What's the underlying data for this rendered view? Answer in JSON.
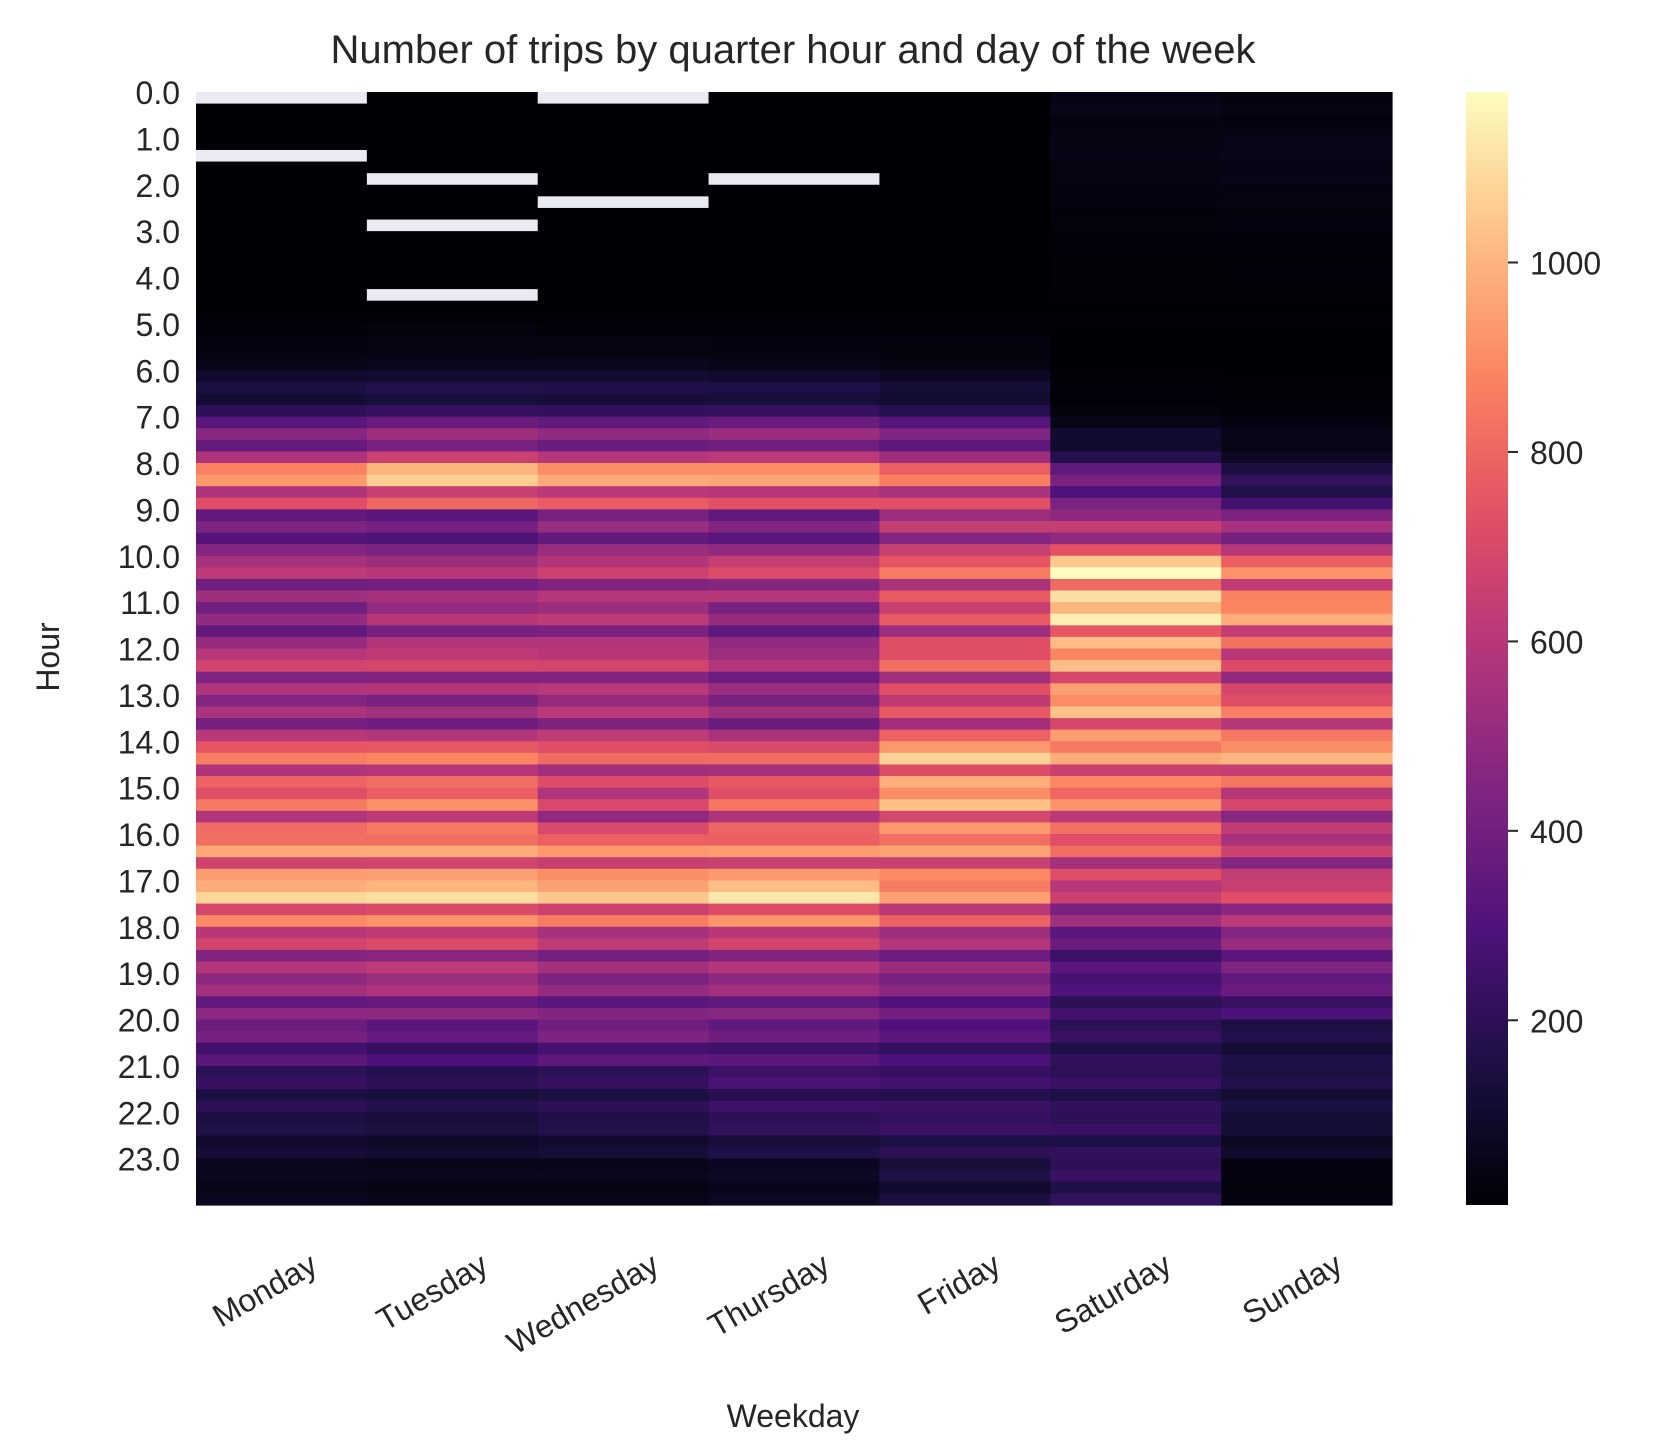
{
  "chart_data": {
    "type": "heatmap",
    "title": "Number of trips by quarter hour and day of the week",
    "xlabel": "Weekday",
    "ylabel": "Hour",
    "x_categories": [
      "Monday",
      "Tuesday",
      "Wednesday",
      "Thursday",
      "Friday",
      "Saturday",
      "Sunday"
    ],
    "y_rows_per_hour": 4,
    "y_tick_labels": [
      "0.0",
      "1.0",
      "2.0",
      "3.0",
      "4.0",
      "5.0",
      "6.0",
      "7.0",
      "8.0",
      "9.0",
      "10.0",
      "11.0",
      "12.0",
      "13.0",
      "14.0",
      "15.0",
      "16.0",
      "17.0",
      "18.0",
      "19.0",
      "20.0",
      "21.0",
      "22.0",
      "23.0"
    ],
    "colormap": "magma",
    "missing_color": "#eaeaf2",
    "vmin": 5,
    "vmax": 1180,
    "colorbar_ticks": [
      200,
      400,
      600,
      800,
      1000
    ],
    "missing": [
      {
        "weekday": "Monday",
        "hour": 0.0
      },
      {
        "weekday": "Monday",
        "hour": 1.25
      },
      {
        "weekday": "Tuesday",
        "hour": 1.75
      },
      {
        "weekday": "Tuesday",
        "hour": 2.75
      },
      {
        "weekday": "Tuesday",
        "hour": 4.25
      },
      {
        "weekday": "Wednesday",
        "hour": 0.0
      },
      {
        "weekday": "Wednesday",
        "hour": 2.25
      },
      {
        "weekday": "Thursday",
        "hour": 1.75
      }
    ],
    "hourly_values": {
      "Monday": [
        8,
        6,
        5,
        5,
        6,
        20,
        100,
        330,
        870,
        350,
        550,
        400,
        600,
        450,
        750,
        720,
        820,
        980,
        600,
        480,
        380,
        200,
        150,
        60
      ],
      "Tuesday": [
        8,
        6,
        5,
        5,
        6,
        25,
        110,
        380,
        1000,
        330,
        520,
        500,
        620,
        420,
        760,
        780,
        820,
        1000,
        620,
        520,
        330,
        180,
        130,
        50
      ],
      "Wednesday": [
        8,
        6,
        5,
        5,
        6,
        22,
        110,
        350,
        900,
        420,
        580,
        520,
        600,
        500,
        720,
        580,
        780,
        950,
        550,
        430,
        400,
        200,
        160,
        50
      ],
      "Thursday": [
        8,
        6,
        5,
        5,
        6,
        18,
        100,
        380,
        900,
        350,
        640,
        420,
        520,
        420,
        700,
        720,
        780,
        1020,
        600,
        480,
        350,
        250,
        200,
        70
      ],
      "Friday": [
        8,
        6,
        5,
        5,
        6,
        15,
        80,
        320,
        780,
        520,
        750,
        650,
        720,
        620,
        930,
        900,
        820,
        860,
        520,
        420,
        300,
        230,
        220,
        130
      ],
      "Saturday": [
        40,
        40,
        30,
        15,
        10,
        8,
        10,
        50,
        350,
        480,
        1050,
        1000,
        880,
        900,
        850,
        800,
        720,
        600,
        330,
        270,
        200,
        200,
        200,
        200
      ],
      "Sunday": [
        30,
        50,
        35,
        20,
        10,
        8,
        8,
        30,
        150,
        430,
        780,
        880,
        600,
        720,
        900,
        600,
        560,
        650,
        450,
        350,
        150,
        150,
        120,
        30
      ]
    },
    "grid": false
  }
}
